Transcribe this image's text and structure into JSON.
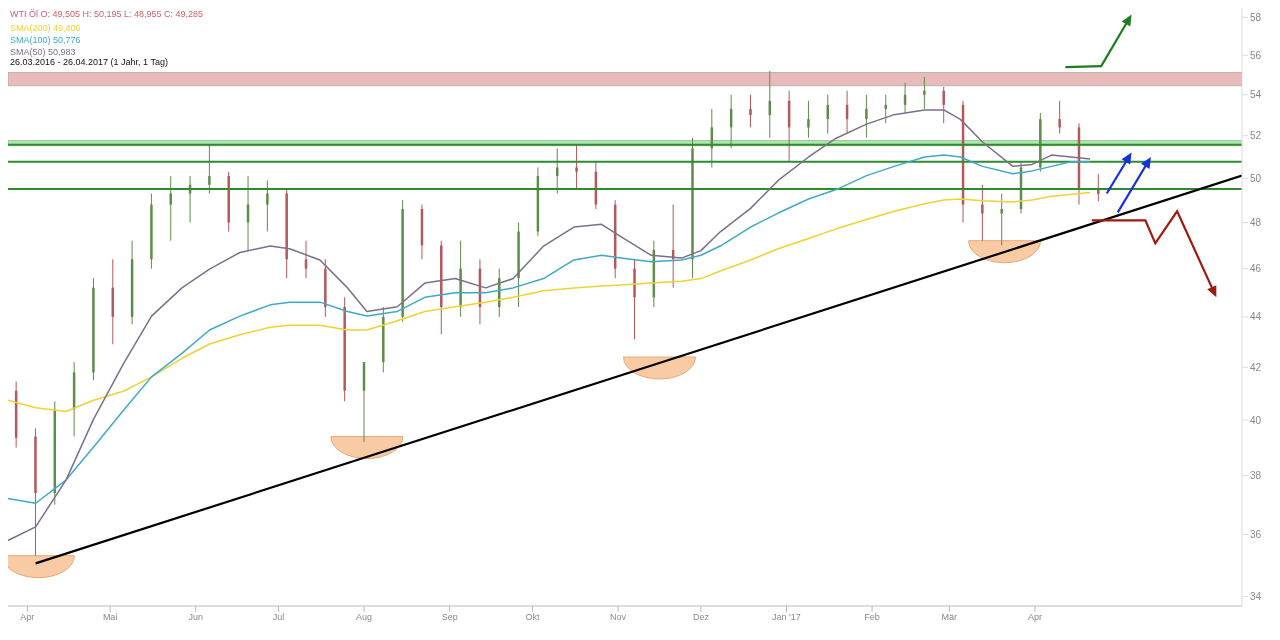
{
  "chart_data": {
    "type": "candlestick",
    "title": "WTI Öl  O: 49,505  H: 50,195  L: 48,955  C: 49,285",
    "subtitle": "26.03.2016 - 26.04.2017   (1 Jahr, 1 Tag)",
    "x": [
      "2016-03-28",
      "2016-04-04",
      "2016-04-11",
      "2016-04-18",
      "2016-04-25",
      "2016-05-02",
      "2016-05-09",
      "2016-05-16",
      "2016-05-23",
      "2016-05-30",
      "2016-06-06",
      "2016-06-13",
      "2016-06-20",
      "2016-06-27",
      "2016-07-04",
      "2016-07-11",
      "2016-07-18",
      "2016-07-25",
      "2016-08-01",
      "2016-08-08",
      "2016-08-15",
      "2016-08-22",
      "2016-08-29",
      "2016-09-05",
      "2016-09-12",
      "2016-09-19",
      "2016-09-26",
      "2016-10-03",
      "2016-10-10",
      "2016-10-17",
      "2016-10-24",
      "2016-10-31",
      "2016-11-07",
      "2016-11-14",
      "2016-11-21",
      "2016-11-28",
      "2016-12-05",
      "2016-12-12",
      "2016-12-19",
      "2016-12-26",
      "2017-01-02",
      "2017-01-09",
      "2017-01-16",
      "2017-01-23",
      "2017-01-30",
      "2017-02-06",
      "2017-02-13",
      "2017-02-20",
      "2017-02-27",
      "2017-03-06",
      "2017-03-13",
      "2017-03-20",
      "2017-03-27",
      "2017-04-03",
      "2017-04-10",
      "2017-04-17",
      "2017-04-24"
    ],
    "ohlc": [
      [
        41.1,
        41.45,
        39.0,
        39.36
      ],
      [
        39.4,
        39.7,
        35.3,
        37.4
      ],
      [
        37.4,
        40.7,
        37.0,
        40.4
      ],
      [
        40.4,
        42.2,
        39.4,
        41.8
      ],
      [
        41.8,
        45.6,
        41.5,
        45.2
      ],
      [
        45.2,
        46.4,
        42.9,
        44.0
      ],
      [
        44.0,
        47.2,
        43.7,
        46.4
      ],
      [
        46.4,
        49.3,
        46.0,
        48.8
      ],
      [
        48.8,
        50.1,
        47.2,
        49.3
      ],
      [
        49.3,
        50.1,
        48.0,
        49.7
      ],
      [
        49.7,
        51.6,
        49.3,
        50.1
      ],
      [
        50.1,
        50.3,
        47.6,
        48.0
      ],
      [
        48.0,
        50.1,
        46.8,
        48.8
      ],
      [
        48.8,
        49.9,
        47.6,
        49.3
      ],
      [
        49.3,
        49.5,
        45.6,
        46.4
      ],
      [
        46.4,
        47.2,
        45.6,
        46.0
      ],
      [
        46.0,
        46.4,
        44.0,
        44.4
      ],
      [
        44.4,
        44.8,
        40.7,
        41.1
      ],
      [
        41.1,
        42.2,
        39.2,
        42.2
      ],
      [
        42.2,
        44.4,
        41.8,
        44.0
      ],
      [
        44.0,
        49.0,
        43.8,
        48.6
      ],
      [
        48.6,
        48.8,
        46.4,
        47.0
      ],
      [
        47.0,
        47.2,
        43.3,
        44.4
      ],
      [
        44.4,
        47.2,
        44.0,
        46.0
      ],
      [
        46.0,
        46.4,
        43.7,
        44.4
      ],
      [
        44.4,
        46.0,
        44.0,
        45.6
      ],
      [
        45.6,
        48.0,
        44.4,
        47.6
      ],
      [
        47.6,
        50.5,
        47.4,
        50.1
      ],
      [
        50.1,
        51.4,
        49.3,
        50.5
      ],
      [
        50.5,
        51.6,
        49.5,
        50.3
      ],
      [
        50.3,
        50.8,
        48.6,
        48.8
      ],
      [
        48.8,
        49.0,
        45.6,
        46.0
      ],
      [
        46.0,
        46.4,
        43.1,
        44.8
      ],
      [
        44.8,
        47.2,
        44.4,
        46.8
      ],
      [
        46.8,
        48.8,
        45.2,
        46.4
      ],
      [
        46.4,
        51.9,
        45.6,
        51.4
      ],
      [
        51.4,
        53.3,
        50.5,
        52.4
      ],
      [
        52.4,
        54.0,
        51.4,
        53.3
      ],
      [
        53.3,
        54.0,
        52.4,
        53.0
      ],
      [
        53.0,
        55.2,
        51.9,
        53.7
      ],
      [
        53.7,
        54.2,
        50.8,
        52.4
      ],
      [
        52.4,
        53.7,
        51.9,
        52.8
      ],
      [
        52.8,
        54.0,
        52.1,
        53.5
      ],
      [
        53.5,
        54.2,
        52.1,
        52.8
      ],
      [
        52.8,
        54.0,
        51.9,
        53.3
      ],
      [
        53.3,
        54.0,
        52.6,
        53.5
      ],
      [
        53.5,
        54.6,
        53.1,
        54.0
      ],
      [
        54.0,
        54.9,
        53.3,
        54.2
      ],
      [
        54.2,
        54.4,
        52.6,
        53.5
      ],
      [
        53.5,
        53.7,
        48.0,
        48.8
      ],
      [
        48.8,
        49.7,
        47.2,
        48.4
      ],
      [
        48.4,
        49.3,
        47.0,
        48.6
      ],
      [
        48.6,
        50.8,
        48.4,
        50.5
      ],
      [
        50.5,
        53.1,
        50.3,
        52.8
      ],
      [
        52.8,
        53.7,
        52.1,
        52.4
      ],
      [
        52.4,
        52.6,
        48.8,
        49.5
      ],
      [
        49.505,
        50.195,
        48.955,
        49.285
      ]
    ],
    "colors": [
      "#b4585a",
      "#b4585a",
      "#5e8c4a",
      "#5e8c4a",
      "#5e8c4a",
      "#b4585a",
      "#5e8c4a",
      "#5e8c4a",
      "#5e8c4a",
      "#5e8c4a",
      "#5e8c4a",
      "#b4585a",
      "#5e8c4a",
      "#5e8c4a",
      "#b4585a",
      "#b4585a",
      "#b4585a",
      "#b4585a",
      "#5e8c4a",
      "#5e8c4a",
      "#5e8c4a",
      "#b4585a",
      "#b4585a",
      "#5e8c4a",
      "#b4585a",
      "#5e8c4a",
      "#5e8c4a",
      "#5e8c4a",
      "#5e8c4a",
      "#b4585a",
      "#b4585a",
      "#b4585a",
      "#b4585a",
      "#5e8c4a",
      "#b4585a",
      "#5e8c4a",
      "#5e8c4a",
      "#5e8c4a",
      "#b4585a",
      "#5e8c4a",
      "#b4585a",
      "#5e8c4a",
      "#5e8c4a",
      "#b4585a",
      "#5e8c4a",
      "#5e8c4a",
      "#5e8c4a",
      "#5e8c4a",
      "#b4585a",
      "#b4585a",
      "#b4585a",
      "#5e8c4a",
      "#5e8c4a",
      "#5e8c4a",
      "#b4585a",
      "#b4585a",
      "#b4585a"
    ],
    "series": [
      {
        "type": "line",
        "name": "SMA(200)  49,406",
        "color": "#f0d232",
        "x": [
          "2016-03-25",
          "2016-04-04",
          "2016-04-15",
          "2016-04-25",
          "2016-05-06",
          "2016-05-16",
          "2016-05-27",
          "2016-06-06",
          "2016-06-17",
          "2016-06-28",
          "2016-07-05",
          "2016-07-16",
          "2016-07-26",
          "2016-08-02",
          "2016-08-13",
          "2016-08-23",
          "2016-09-03",
          "2016-09-14",
          "2016-09-24",
          "2016-10-05",
          "2016-10-16",
          "2016-10-26",
          "2016-11-02",
          "2016-11-13",
          "2016-11-24",
          "2016-12-01",
          "2016-12-08",
          "2016-12-19",
          "2016-12-29",
          "2017-01-09",
          "2017-01-19",
          "2017-01-30",
          "2017-02-09",
          "2017-02-20",
          "2017-02-27",
          "2017-03-05",
          "2017-03-13",
          "2017-03-24",
          "2017-03-31",
          "2017-04-07",
          "2017-04-14",
          "2017-04-21"
        ],
        "values": [
          40.74,
          40.46,
          40.32,
          40.74,
          41.09,
          41.63,
          42.35,
          42.91,
          43.28,
          43.58,
          43.66,
          43.66,
          43.47,
          43.47,
          43.84,
          44.22,
          44.41,
          44.6,
          44.8,
          45.07,
          45.19,
          45.27,
          45.31,
          45.39,
          45.47,
          45.58,
          45.9,
          46.37,
          46.85,
          47.3,
          47.72,
          48.13,
          48.5,
          48.84,
          49.01,
          49.05,
          48.97,
          48.92,
          49.01,
          49.18,
          49.26,
          49.35
        ]
      },
      {
        "type": "line",
        "name": "SMA(100)  50,776",
        "color": "#3fa9c9",
        "x": [
          "2016-03-25",
          "2016-04-04",
          "2016-04-15",
          "2016-04-25",
          "2016-05-06",
          "2016-05-16",
          "2016-05-27",
          "2016-06-06",
          "2016-06-17",
          "2016-06-28",
          "2016-07-05",
          "2016-07-16",
          "2016-07-26",
          "2016-08-02",
          "2016-08-13",
          "2016-08-23",
          "2016-09-03",
          "2016-09-14",
          "2016-09-24",
          "2016-10-05",
          "2016-10-16",
          "2016-10-26",
          "2016-11-02",
          "2016-11-13",
          "2016-11-24",
          "2016-12-01",
          "2016-12-08",
          "2016-12-19",
          "2016-12-29",
          "2017-01-09",
          "2017-01-19",
          "2017-01-30",
          "2017-02-09",
          "2017-02-20",
          "2017-02-27",
          "2017-03-05",
          "2017-03-13",
          "2017-03-24",
          "2017-03-31",
          "2017-04-07",
          "2017-04-14",
          "2017-04-21"
        ],
        "values": [
          37.21,
          37.05,
          37.85,
          39.02,
          40.39,
          41.63,
          42.54,
          43.47,
          44.03,
          44.49,
          44.6,
          44.6,
          44.22,
          44.03,
          44.22,
          44.8,
          44.99,
          44.99,
          45.19,
          45.58,
          46.37,
          46.57,
          46.45,
          46.29,
          46.37,
          46.57,
          46.97,
          47.8,
          48.42,
          49.05,
          49.48,
          50.12,
          50.55,
          50.99,
          51.08,
          50.99,
          50.55,
          50.21,
          50.34,
          50.55,
          50.77,
          50.77
        ]
      },
      {
        "type": "line",
        "name": "SMA(50)  50,983",
        "color": "#7d6e8a",
        "x": [
          "2016-03-25",
          "2016-04-04",
          "2016-04-15",
          "2016-04-25",
          "2016-05-06",
          "2016-05-16",
          "2016-05-27",
          "2016-06-06",
          "2016-06-17",
          "2016-06-28",
          "2016-07-05",
          "2016-07-16",
          "2016-07-26",
          "2016-08-02",
          "2016-08-13",
          "2016-08-23",
          "2016-09-03",
          "2016-09-14",
          "2016-09-24",
          "2016-10-05",
          "2016-10-16",
          "2016-10-26",
          "2016-11-02",
          "2016-11-13",
          "2016-11-24",
          "2016-12-01",
          "2016-12-08",
          "2016-12-19",
          "2016-12-29",
          "2017-01-09",
          "2017-01-19",
          "2017-01-30",
          "2017-02-09",
          "2017-02-20",
          "2017-02-27",
          "2017-03-05",
          "2017-03-13",
          "2017-03-24",
          "2017-03-31",
          "2017-04-07",
          "2017-04-14",
          "2017-04-21"
        ],
        "values": [
          35.8,
          36.25,
          37.85,
          40.04,
          42.17,
          44.03,
          45.19,
          45.98,
          46.69,
          46.97,
          46.85,
          46.37,
          45.19,
          44.22,
          44.41,
          45.39,
          45.58,
          45.19,
          45.58,
          46.97,
          47.8,
          47.92,
          47.38,
          46.57,
          46.45,
          46.77,
          47.59,
          48.63,
          49.9,
          50.99,
          51.88,
          52.56,
          53.02,
          53.25,
          53.25,
          52.79,
          51.7,
          50.55,
          50.64,
          51.08,
          50.99,
          50.9
        ]
      },
      {
        "type": "line",
        "color": "#000000",
        "x": [
          "2016-04-04",
          "2017-06-15"
        ],
        "values": [
          35.05,
          50.12
        ]
      }
    ],
    "xlim": [
      "2016-03-25",
      "2017-06-15"
    ],
    "xticks": [
      {
        "value": "2016-04-01",
        "label": "Apr"
      },
      {
        "value": "2016-05-01",
        "label": "Mai"
      },
      {
        "value": "2016-06-01",
        "label": "Jun"
      },
      {
        "value": "2016-07-01",
        "label": "Jul"
      },
      {
        "value": "2016-08-01",
        "label": "Aug"
      },
      {
        "value": "2016-09-01",
        "label": "Sep"
      },
      {
        "value": "2016-10-01",
        "label": "Okt"
      },
      {
        "value": "2016-11-01",
        "label": "Nov"
      },
      {
        "value": "2016-12-01",
        "label": "Dez"
      },
      {
        "value": "2017-01-01",
        "label": "Jan '17"
      },
      {
        "value": "2017-02-01",
        "label": "Feb"
      },
      {
        "value": "2017-03-01",
        "label": "Mär"
      },
      {
        "value": "2017-04-01",
        "label": "Apr"
      }
    ],
    "ylim": [
      33.7,
      58.5
    ],
    "yticks": [
      34,
      36,
      38,
      40,
      42,
      44,
      46,
      48,
      50,
      52,
      54,
      56,
      58
    ],
    "log": true,
    "legend": "top left",
    "ref_lines": [
      {
        "axis": "y",
        "value": 51.57,
        "color": "#2e8b2e"
      },
      {
        "axis": "y",
        "value": 50.77,
        "color": "#2e8b2e"
      },
      {
        "axis": "y",
        "value": 49.51,
        "color": "#2e8b2e"
      }
    ],
    "bands": [
      {
        "axis": "y",
        "from": 51.52,
        "to": 51.77,
        "color": "#a8eaa8"
      },
      {
        "axis": "y",
        "from": 54.45,
        "to": 55.12,
        "color": "#e8baba"
      }
    ]
  }
}
